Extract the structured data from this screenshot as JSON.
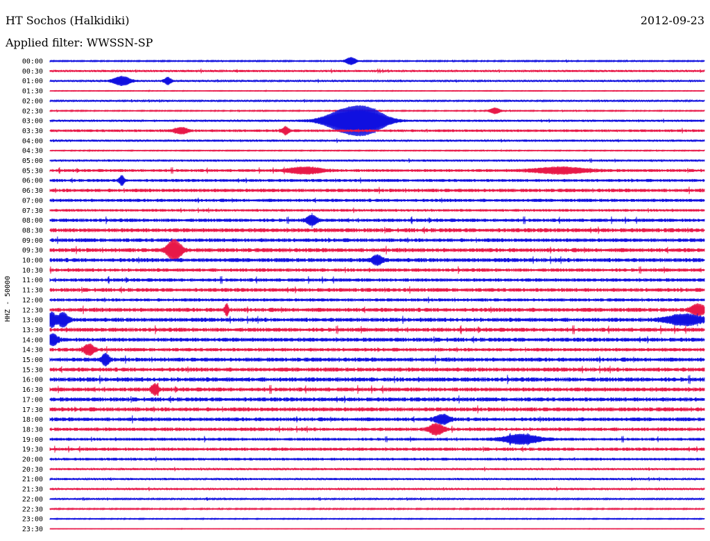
{
  "header": {
    "station": "HT Sochos (Halkidiki)",
    "date": "2012-09-23",
    "filter": "Applied filter: WWSSN-SP"
  },
  "axis": {
    "ylabel": "HHZ - 50000"
  },
  "colors": {
    "even": "#1010e0",
    "odd": "#e81848"
  },
  "chart_data": {
    "type": "line",
    "title": "HT Sochos (Halkidiki)",
    "xlabel": "",
    "ylabel": "HHZ - 50000",
    "row_labels": [
      "00:00",
      "00:30",
      "01:00",
      "01:30",
      "02:00",
      "02:30",
      "03:00",
      "03:30",
      "04:00",
      "04:30",
      "05:00",
      "05:30",
      "06:00",
      "06:30",
      "07:00",
      "07:30",
      "08:00",
      "08:30",
      "09:00",
      "09:30",
      "10:00",
      "10:30",
      "11:00",
      "11:30",
      "12:00",
      "12:30",
      "13:00",
      "13:30",
      "14:00",
      "14:30",
      "15:00",
      "15:30",
      "16:00",
      "16:30",
      "17:00",
      "17:30",
      "18:00",
      "18:30",
      "19:00",
      "19:30",
      "20:00",
      "20:30",
      "21:00",
      "21:30",
      "22:00",
      "22:30",
      "23:00",
      "23:30"
    ],
    "noise_level": [
      1.0,
      1.6,
      1.4,
      0.6,
      1.3,
      0.9,
      1.6,
      2.0,
      1.6,
      0.8,
      1.6,
      2.2,
      2.2,
      2.6,
      2.4,
      2.0,
      2.6,
      3.0,
      2.8,
      3.0,
      3.0,
      2.6,
      2.6,
      2.8,
      2.4,
      3.0,
      3.0,
      3.0,
      3.0,
      2.6,
      3.0,
      3.0,
      3.2,
      3.0,
      3.0,
      3.0,
      2.8,
      2.6,
      2.2,
      2.4,
      2.0,
      1.6,
      1.6,
      1.6,
      1.2,
      1.0,
      0.8,
      0.4
    ],
    "events": [
      {
        "row": 0,
        "pos": 0.46,
        "amp": 5,
        "width": 0.006
      },
      {
        "row": 2,
        "pos": 0.11,
        "amp": 6,
        "width": 0.01
      },
      {
        "row": 2,
        "pos": 0.18,
        "amp": 5,
        "width": 0.004
      },
      {
        "row": 5,
        "pos": 0.68,
        "amp": 4,
        "width": 0.006
      },
      {
        "row": 6,
        "pos": 0.455,
        "amp": 16,
        "width": 0.025
      },
      {
        "row": 6,
        "pos": 0.49,
        "amp": 12,
        "width": 0.02
      },
      {
        "row": 7,
        "pos": 0.36,
        "amp": 5,
        "width": 0.004
      },
      {
        "row": 7,
        "pos": 0.2,
        "amp": 4,
        "width": 0.008
      },
      {
        "row": 11,
        "pos": 0.39,
        "amp": 4,
        "width": 0.02
      },
      {
        "row": 11,
        "pos": 0.78,
        "amp": 4,
        "width": 0.03
      },
      {
        "row": 12,
        "pos": 0.11,
        "amp": 6,
        "width": 0.003
      },
      {
        "row": 16,
        "pos": 0.4,
        "amp": 6,
        "width": 0.006
      },
      {
        "row": 19,
        "pos": 0.19,
        "amp": 14,
        "width": 0.008
      },
      {
        "row": 20,
        "pos": 0.5,
        "amp": 6,
        "width": 0.006
      },
      {
        "row": 25,
        "pos": 0.27,
        "amp": 8,
        "width": 0.002
      },
      {
        "row": 25,
        "pos": 0.99,
        "amp": 7,
        "width": 0.008
      },
      {
        "row": 26,
        "pos": 0.003,
        "amp": 10,
        "width": 0.004
      },
      {
        "row": 26,
        "pos": 0.02,
        "amp": 9,
        "width": 0.006
      },
      {
        "row": 26,
        "pos": 0.97,
        "amp": 7,
        "width": 0.02
      },
      {
        "row": 28,
        "pos": 0.004,
        "amp": 7,
        "width": 0.006
      },
      {
        "row": 29,
        "pos": 0.06,
        "amp": 7,
        "width": 0.006
      },
      {
        "row": 30,
        "pos": 0.085,
        "amp": 8,
        "width": 0.004
      },
      {
        "row": 33,
        "pos": 0.16,
        "amp": 7,
        "width": 0.004
      },
      {
        "row": 36,
        "pos": 0.6,
        "amp": 6,
        "width": 0.008
      },
      {
        "row": 37,
        "pos": 0.59,
        "amp": 7,
        "width": 0.008
      },
      {
        "row": 38,
        "pos": 0.72,
        "amp": 6,
        "width": 0.02
      }
    ]
  }
}
